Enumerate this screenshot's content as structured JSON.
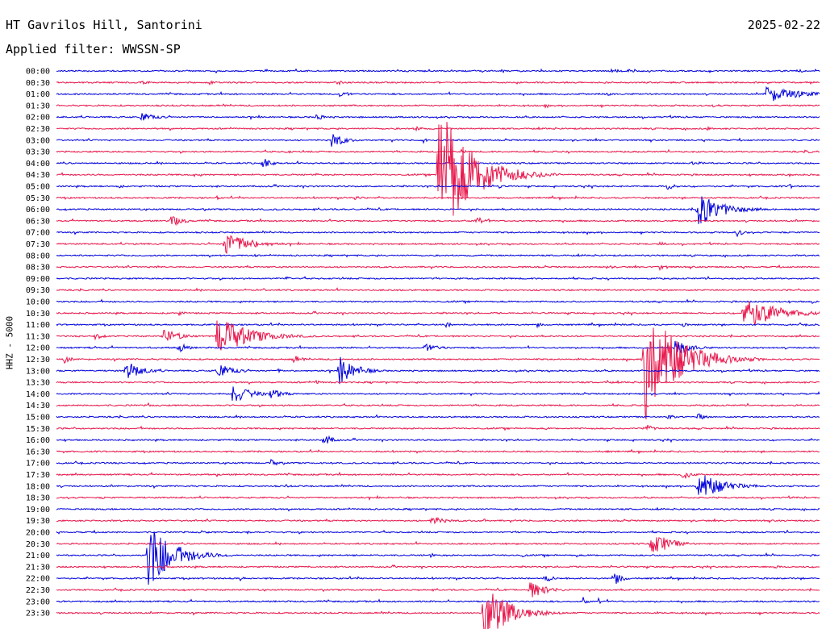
{
  "header": {
    "station": "HT Gavrilos Hill, Santorini",
    "filter": "Applied filter: WWSSN-SP",
    "date": "2025-02-22"
  },
  "chart_data": {
    "type": "line",
    "title": "HT Gavrilos Hill, Santorini",
    "ylabel": "HHZ - 5000",
    "colors": [
      "#0000dd",
      "#e8154a"
    ],
    "trace_labels": [
      "00:00",
      "00:30",
      "01:00",
      "01:30",
      "02:00",
      "02:30",
      "03:00",
      "03:30",
      "04:00",
      "04:30",
      "05:00",
      "05:30",
      "06:00",
      "06:30",
      "07:00",
      "07:30",
      "08:00",
      "08:30",
      "09:00",
      "09:30",
      "10:00",
      "10:30",
      "11:00",
      "11:30",
      "12:00",
      "12:30",
      "13:00",
      "13:30",
      "14:00",
      "14:30",
      "15:00",
      "15:30",
      "16:00",
      "16:30",
      "17:00",
      "17:30",
      "18:00",
      "18:30",
      "19:00",
      "19:30",
      "20:00",
      "20:30",
      "21:00",
      "21:30",
      "22:00",
      "22:30",
      "23:00",
      "23:30"
    ],
    "events": [
      {
        "trace": 0,
        "t": 0.97,
        "amp": 3,
        "dur": 0.01
      },
      {
        "trace": 0,
        "t": 0.725,
        "amp": 3,
        "dur": 0.015
      },
      {
        "trace": 0,
        "t": 0.75,
        "amp": 3,
        "dur": 0.008
      },
      {
        "trace": 1,
        "t": 0.11,
        "amp": 3,
        "dur": 0.01
      },
      {
        "trace": 1,
        "t": 0.2,
        "amp": 3,
        "dur": 0.006
      },
      {
        "trace": 1,
        "t": 0.37,
        "amp": 3,
        "dur": 0.01
      },
      {
        "trace": 2,
        "t": 0.37,
        "amp": 6,
        "dur": 0.01
      },
      {
        "trace": 2,
        "t": 0.72,
        "amp": 3,
        "dur": 0.01
      },
      {
        "trace": 2,
        "t": 0.93,
        "amp": 11,
        "dur": 0.04
      },
      {
        "trace": 3,
        "t": 0.64,
        "amp": 3,
        "dur": 0.005
      },
      {
        "trace": 3,
        "t": 0.86,
        "amp": 3,
        "dur": 0.01
      },
      {
        "trace": 4,
        "t": 0.11,
        "amp": 6,
        "dur": 0.02
      },
      {
        "trace": 4,
        "t": 0.34,
        "amp": 5,
        "dur": 0.01
      },
      {
        "trace": 5,
        "t": 0.47,
        "amp": 4,
        "dur": 0.01
      },
      {
        "trace": 5,
        "t": 0.85,
        "amp": 3,
        "dur": 0.01
      },
      {
        "trace": 6,
        "t": 0.36,
        "amp": 11,
        "dur": 0.015
      },
      {
        "trace": 6,
        "t": 0.48,
        "amp": 4,
        "dur": 0.005
      },
      {
        "trace": 7,
        "t": 0.3,
        "amp": 3,
        "dur": 0.008
      },
      {
        "trace": 7,
        "t": 0.53,
        "amp": 3,
        "dur": 0.008
      },
      {
        "trace": 7,
        "t": 0.98,
        "amp": 3,
        "dur": 0.01
      },
      {
        "trace": 8,
        "t": 0.27,
        "amp": 8,
        "dur": 0.01
      },
      {
        "trace": 8,
        "t": 0.83,
        "amp": 3,
        "dur": 0.02
      },
      {
        "trace": 9,
        "t": 0.5,
        "amp": 90,
        "dur": 0.04
      },
      {
        "trace": 9,
        "t": 0.18,
        "amp": 3,
        "dur": 0.005
      },
      {
        "trace": 9,
        "t": 0.34,
        "amp": 3,
        "dur": 0.005
      },
      {
        "trace": 9,
        "t": 0.96,
        "amp": 3,
        "dur": 0.005
      },
      {
        "trace": 10,
        "t": 0.08,
        "amp": 3,
        "dur": 0.008
      },
      {
        "trace": 10,
        "t": 0.58,
        "amp": 4,
        "dur": 0.004
      },
      {
        "trace": 10,
        "t": 0.8,
        "amp": 5,
        "dur": 0.01
      },
      {
        "trace": 10,
        "t": 0.96,
        "amp": 4,
        "dur": 0.008
      },
      {
        "trace": 11,
        "t": 0.21,
        "amp": 3,
        "dur": 0.005
      },
      {
        "trace": 11,
        "t": 0.39,
        "amp": 4,
        "dur": 0.008
      },
      {
        "trace": 12,
        "t": 0.84,
        "amp": 22,
        "dur": 0.03
      },
      {
        "trace": 13,
        "t": 0.15,
        "amp": 8,
        "dur": 0.015
      },
      {
        "trace": 13,
        "t": 0.55,
        "amp": 7,
        "dur": 0.01
      },
      {
        "trace": 14,
        "t": 0.89,
        "amp": 6,
        "dur": 0.01
      },
      {
        "trace": 14,
        "t": 0.37,
        "amp": 2,
        "dur": 0.005
      },
      {
        "trace": 15,
        "t": 0.22,
        "amp": 16,
        "dur": 0.03
      },
      {
        "trace": 15,
        "t": 0.1,
        "amp": 3,
        "dur": 0.005
      },
      {
        "trace": 15,
        "t": 0.79,
        "amp": 3,
        "dur": 0.01
      },
      {
        "trace": 16,
        "t": 0.26,
        "amp": 2,
        "dur": 0.005
      },
      {
        "trace": 17,
        "t": 0.13,
        "amp": 3,
        "dur": 0.005
      },
      {
        "trace": 17,
        "t": 0.72,
        "amp": 3,
        "dur": 0.01
      },
      {
        "trace": 17,
        "t": 0.79,
        "amp": 5,
        "dur": 0.01
      },
      {
        "trace": 18,
        "t": 0.3,
        "amp": 3,
        "dur": 0.008
      },
      {
        "trace": 19,
        "t": 0.27,
        "amp": 3,
        "dur": 0.005
      },
      {
        "trace": 19,
        "t": 0.45,
        "amp": 2,
        "dur": 0.005
      },
      {
        "trace": 20,
        "t": 0.99,
        "amp": 3,
        "dur": 0.005
      },
      {
        "trace": 21,
        "t": 0.9,
        "amp": 22,
        "dur": 0.04
      },
      {
        "trace": 21,
        "t": 0.16,
        "amp": 3,
        "dur": 0.01
      },
      {
        "trace": 22,
        "t": 0.51,
        "amp": 4,
        "dur": 0.01
      },
      {
        "trace": 22,
        "t": 0.63,
        "amp": 3,
        "dur": 0.008
      },
      {
        "trace": 22,
        "t": 0.82,
        "amp": 3,
        "dur": 0.008
      },
      {
        "trace": 23,
        "t": 0.05,
        "amp": 5,
        "dur": 0.01
      },
      {
        "trace": 23,
        "t": 0.14,
        "amp": 10,
        "dur": 0.02
      },
      {
        "trace": 23,
        "t": 0.21,
        "amp": 25,
        "dur": 0.04
      },
      {
        "trace": 23,
        "t": 0.16,
        "amp": 3,
        "dur": 0.005
      },
      {
        "trace": 24,
        "t": 0.16,
        "amp": 8,
        "dur": 0.01
      },
      {
        "trace": 24,
        "t": 0.48,
        "amp": 6,
        "dur": 0.02
      },
      {
        "trace": 24,
        "t": 0.81,
        "amp": 10,
        "dur": 0.02
      },
      {
        "trace": 24,
        "t": 0.05,
        "amp": 2,
        "dur": 0.005
      },
      {
        "trace": 25,
        "t": 0.01,
        "amp": 5,
        "dur": 0.01
      },
      {
        "trace": 25,
        "t": 0.31,
        "amp": 6,
        "dur": 0.01
      },
      {
        "trace": 25,
        "t": 0.77,
        "amp": 80,
        "dur": 0.04
      },
      {
        "trace": 26,
        "t": 0.09,
        "amp": 14,
        "dur": 0.02
      },
      {
        "trace": 26,
        "t": 0.21,
        "amp": 10,
        "dur": 0.02
      },
      {
        "trace": 26,
        "t": 0.29,
        "amp": 3,
        "dur": 0.005
      },
      {
        "trace": 26,
        "t": 0.37,
        "amp": 20,
        "dur": 0.02
      },
      {
        "trace": 27,
        "t": 0.34,
        "amp": 3,
        "dur": 0.01
      },
      {
        "trace": 27,
        "t": 0.72,
        "amp": 3,
        "dur": 0.008
      },
      {
        "trace": 28,
        "t": 0.23,
        "amp": 14,
        "dur": 0.02
      },
      {
        "trace": 28,
        "t": 0.28,
        "amp": 8,
        "dur": 0.015
      },
      {
        "trace": 29,
        "t": 0.12,
        "amp": 3,
        "dur": 0.005
      },
      {
        "trace": 30,
        "t": 0.04,
        "amp": 2,
        "dur": 0.005
      },
      {
        "trace": 30,
        "t": 0.8,
        "amp": 4,
        "dur": 0.01
      },
      {
        "trace": 30,
        "t": 0.84,
        "amp": 5,
        "dur": 0.01
      },
      {
        "trace": 31,
        "t": 0.77,
        "amp": 7,
        "dur": 0.01
      },
      {
        "trace": 31,
        "t": 0.64,
        "amp": 2,
        "dur": 0.008
      },
      {
        "trace": 32,
        "t": 0.35,
        "amp": 9,
        "dur": 0.01
      },
      {
        "trace": 33,
        "t": 0.72,
        "amp": 2,
        "dur": 0.005
      },
      {
        "trace": 34,
        "t": 0.28,
        "amp": 5,
        "dur": 0.01
      },
      {
        "trace": 35,
        "t": 0.21,
        "amp": 3,
        "dur": 0.005
      },
      {
        "trace": 35,
        "t": 0.82,
        "amp": 8,
        "dur": 0.01
      },
      {
        "trace": 36,
        "t": 0.84,
        "amp": 20,
        "dur": 0.03
      },
      {
        "trace": 36,
        "t": 0.3,
        "amp": 3,
        "dur": 0.005
      },
      {
        "trace": 37,
        "t": 0.06,
        "amp": 2,
        "dur": 0.005
      },
      {
        "trace": 39,
        "t": 0.49,
        "amp": 6,
        "dur": 0.02
      },
      {
        "trace": 39,
        "t": 0.56,
        "amp": 3,
        "dur": 0.005
      },
      {
        "trace": 40,
        "t": 0.19,
        "amp": 3,
        "dur": 0.008
      },
      {
        "trace": 40,
        "t": 0.25,
        "amp": 3,
        "dur": 0.005
      },
      {
        "trace": 41,
        "t": 0.09,
        "amp": 3,
        "dur": 0.005
      },
      {
        "trace": 41,
        "t": 0.78,
        "amp": 18,
        "dur": 0.02
      },
      {
        "trace": 42,
        "t": 0.12,
        "amp": 45,
        "dur": 0.03
      },
      {
        "trace": 42,
        "t": 0.49,
        "amp": 3,
        "dur": 0.008
      },
      {
        "trace": 42,
        "t": 0.61,
        "amp": 3,
        "dur": 0.005
      },
      {
        "trace": 42,
        "t": 0.68,
        "amp": 3,
        "dur": 0.005
      },
      {
        "trace": 43,
        "t": 0.14,
        "amp": 3,
        "dur": 0.005
      },
      {
        "trace": 43,
        "t": 0.94,
        "amp": 3,
        "dur": 0.008
      },
      {
        "trace": 44,
        "t": 0.24,
        "amp": 4,
        "dur": 0.005
      },
      {
        "trace": 44,
        "t": 0.64,
        "amp": 6,
        "dur": 0.01
      },
      {
        "trace": 44,
        "t": 0.73,
        "amp": 10,
        "dur": 0.01
      },
      {
        "trace": 45,
        "t": 0.62,
        "amp": 12,
        "dur": 0.02
      },
      {
        "trace": 45,
        "t": 0.66,
        "amp": 3,
        "dur": 0.005
      },
      {
        "trace": 46,
        "t": 0.69,
        "amp": 6,
        "dur": 0.005
      },
      {
        "trace": 46,
        "t": 0.71,
        "amp": 5,
        "dur": 0.005
      },
      {
        "trace": 47,
        "t": 0.56,
        "amp": 40,
        "dur": 0.03
      }
    ]
  }
}
